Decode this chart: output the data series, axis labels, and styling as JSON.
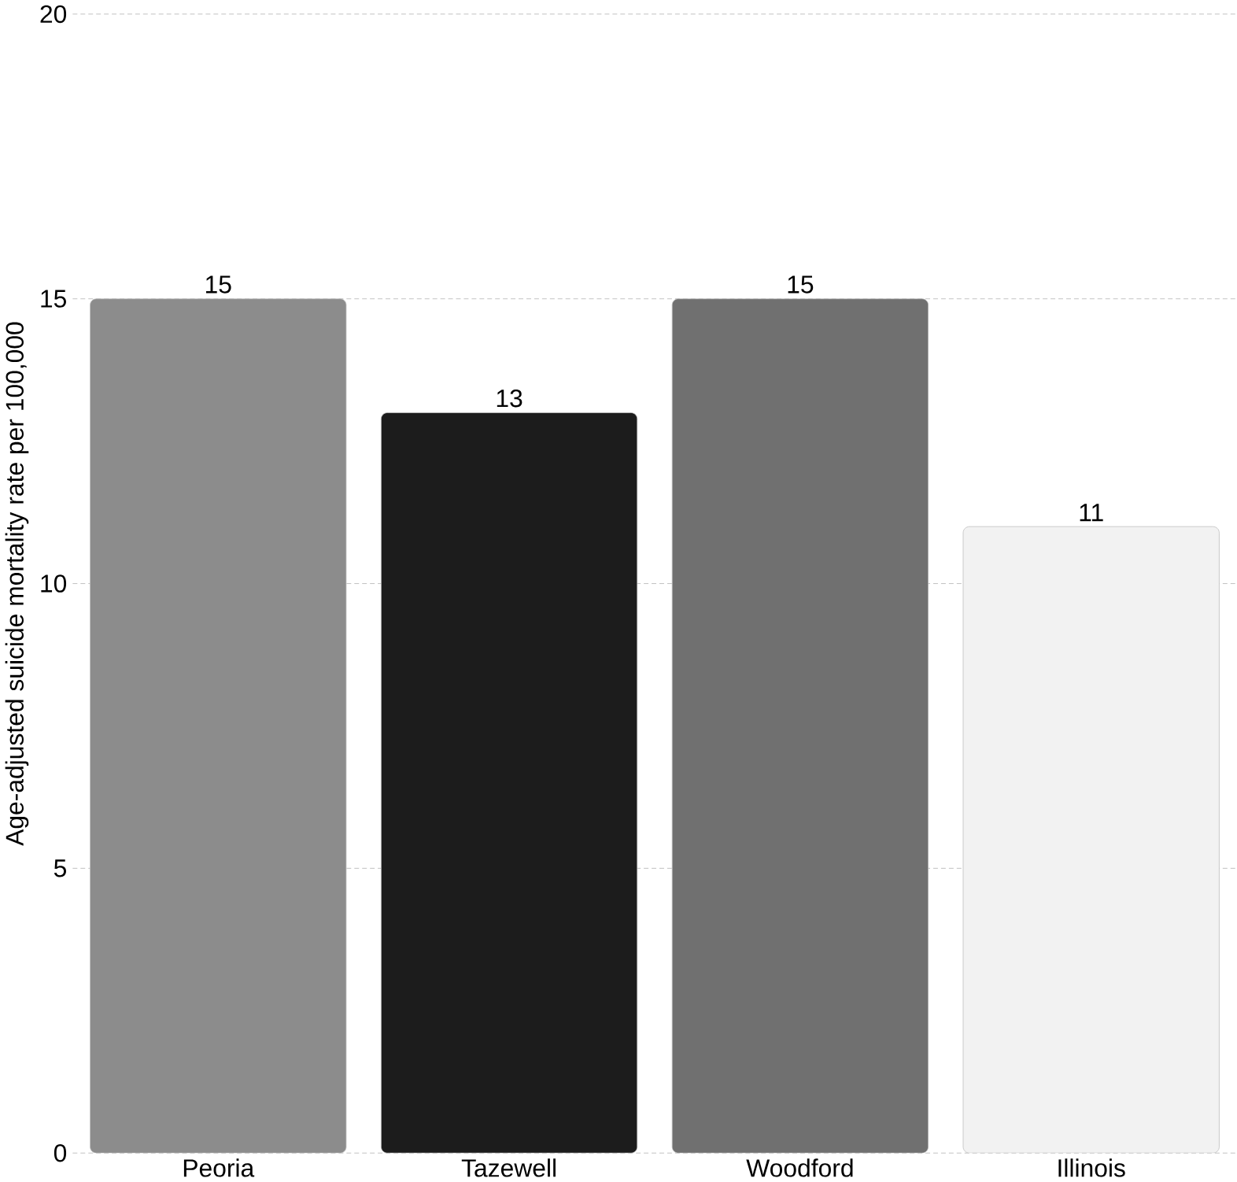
{
  "chart_data": {
    "type": "bar",
    "ylabel": "Age-adjusted suicide mortality rate per 100,000",
    "categories": [
      "Peoria",
      "Tazewell",
      "Woodford",
      "Illinois"
    ],
    "values": [
      15,
      13,
      15,
      11
    ],
    "colors": [
      "#8c8c8c",
      "#1c1c1c",
      "#707070",
      "#f2f2f2"
    ],
    "ylim": [
      0,
      20
    ],
    "yticks": [
      0,
      5,
      10,
      15,
      20
    ],
    "grid": "y",
    "data_labels": true
  }
}
